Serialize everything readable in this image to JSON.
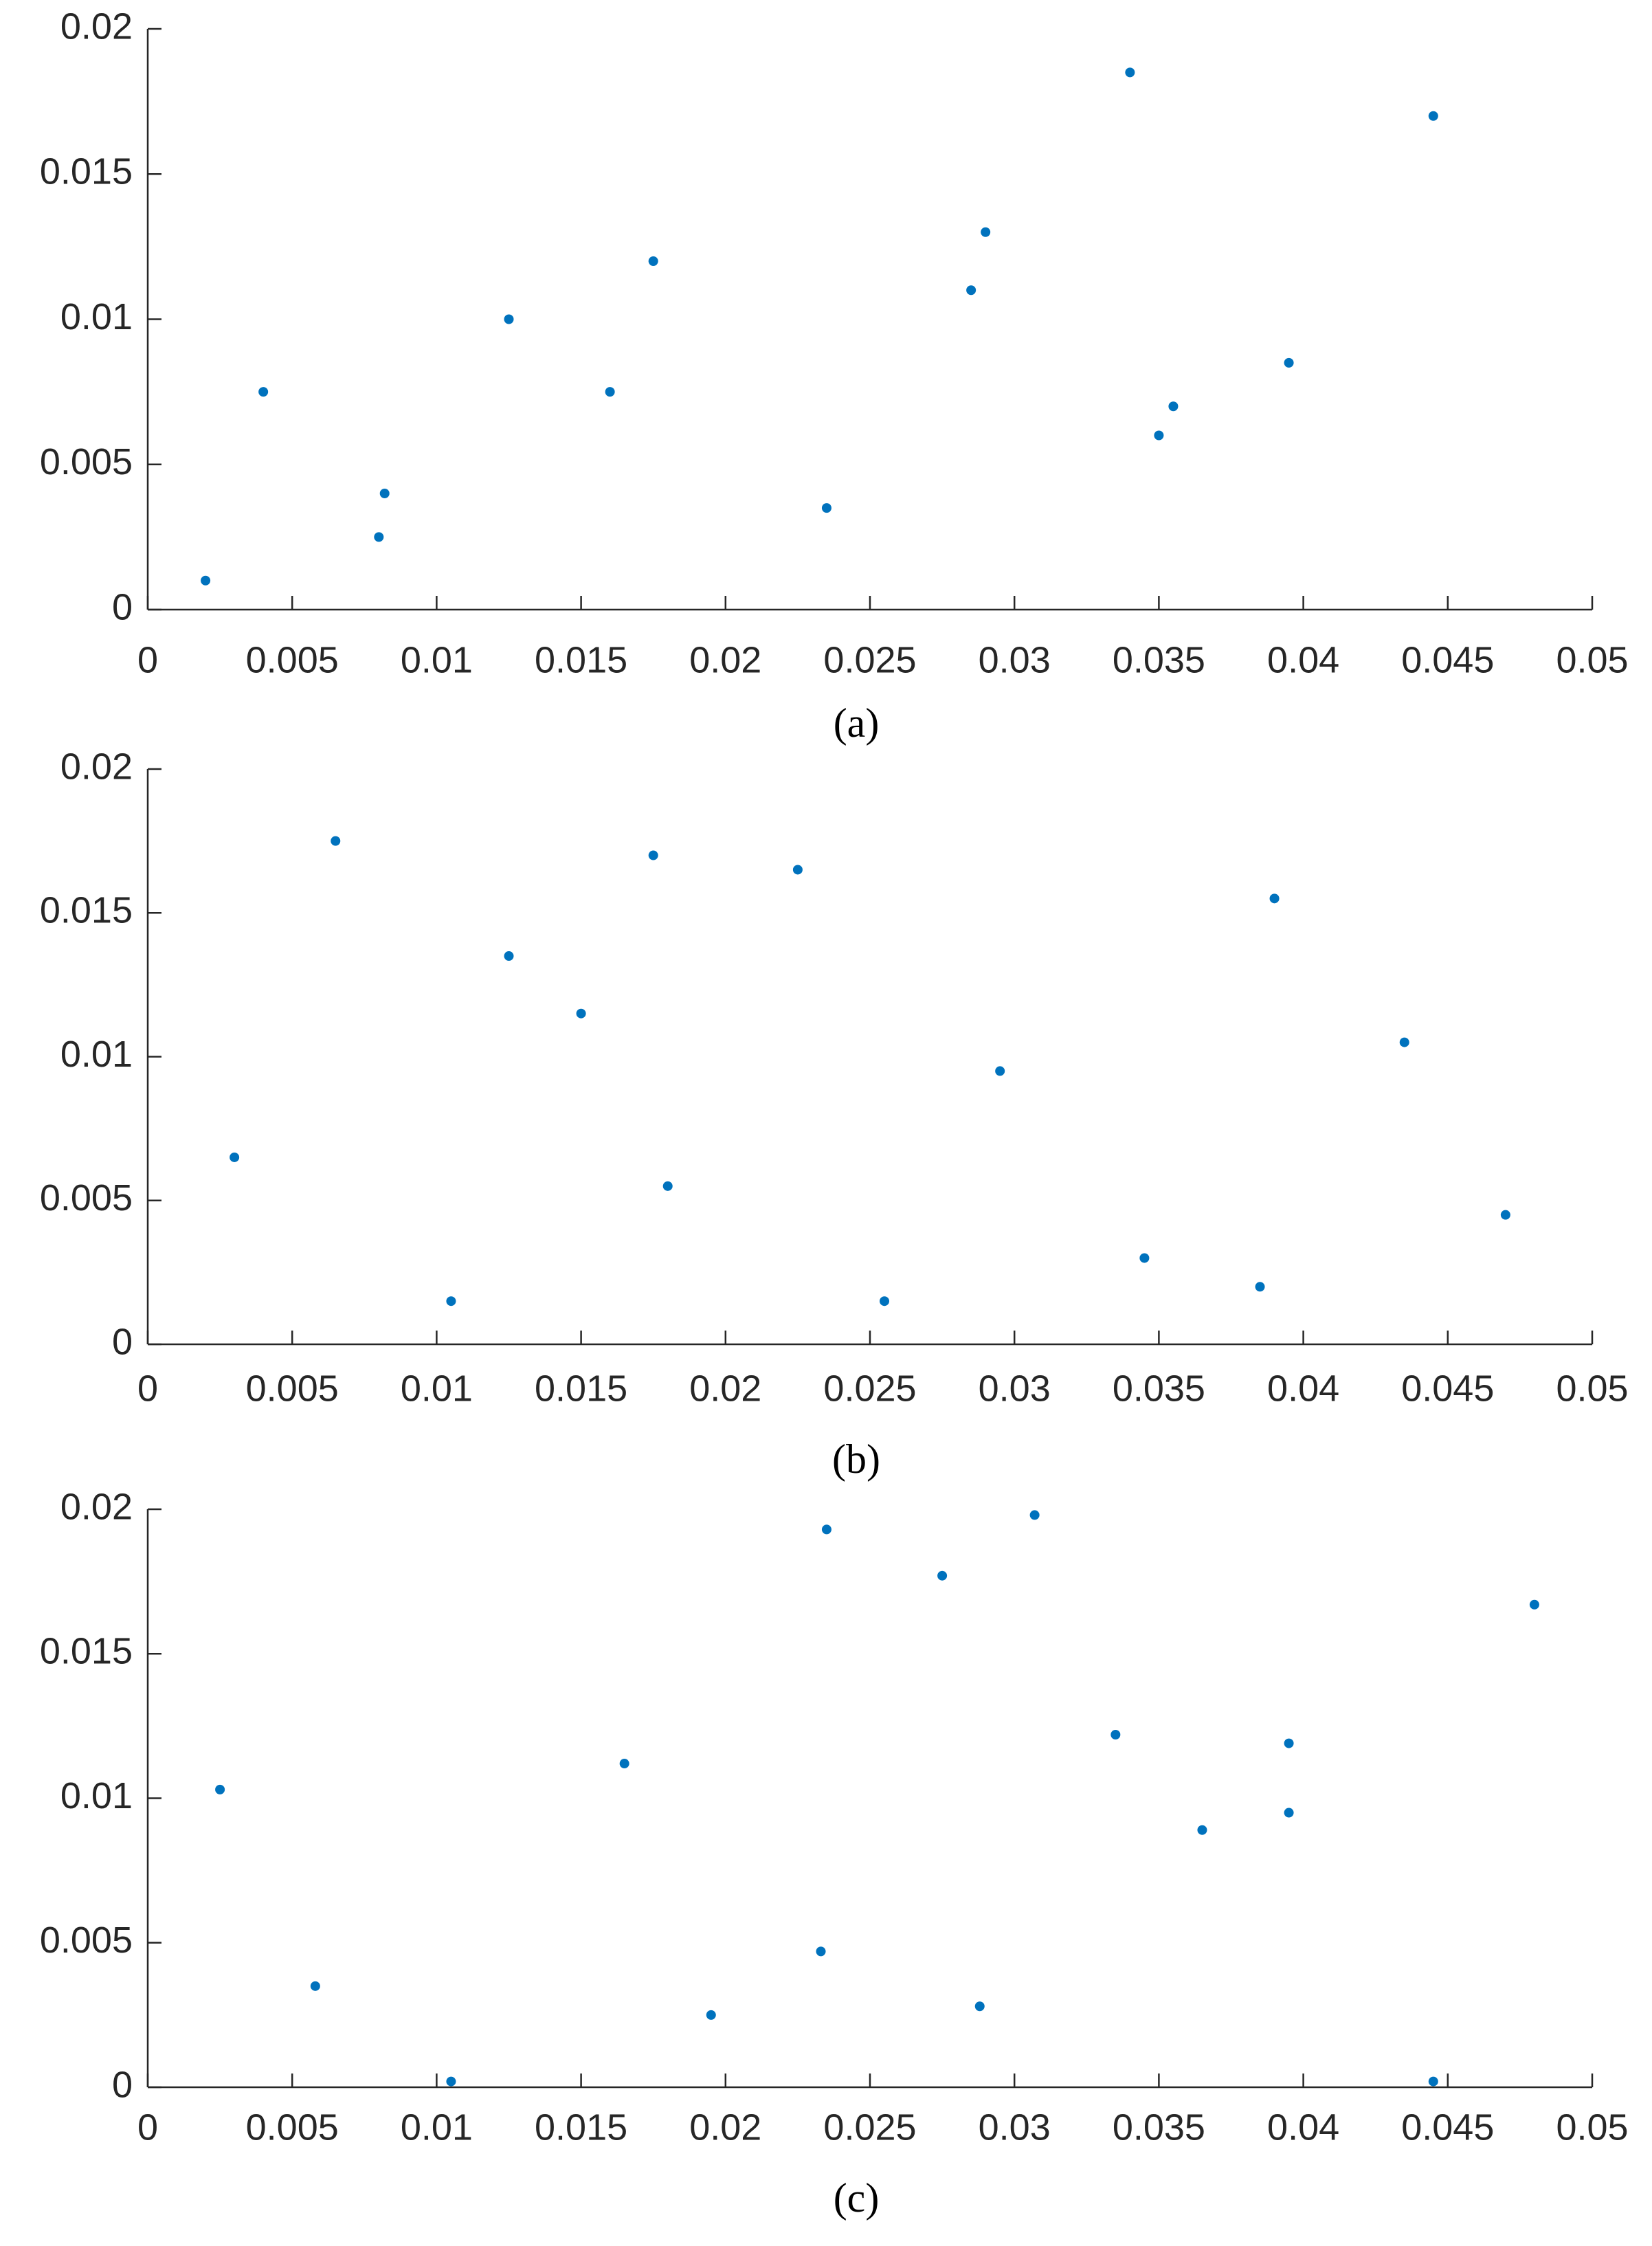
{
  "chart_data": [
    {
      "type": "scatter",
      "caption": "(a)",
      "color": "#0072bd",
      "x": [
        0.008,
        0.0082,
        0.035,
        0.0355,
        0.0445,
        0.029,
        0.016,
        0.004,
        0.0125,
        0.034,
        0.002,
        0.0175,
        0.0285,
        0.0395,
        0.0235
      ],
      "y": [
        0.0025,
        0.004,
        0.006,
        0.007,
        0.017,
        0.013,
        0.0075,
        0.0075,
        0.01,
        0.0185,
        0.001,
        0.012,
        0.011,
        0.0085,
        0.0035
      ],
      "xlim": [
        0,
        0.05
      ],
      "ylim": [
        0,
        0.02
      ],
      "xticks": [
        0,
        0.005,
        0.01,
        0.015,
        0.02,
        0.025,
        0.03,
        0.035,
        0.04,
        0.045,
        0.05
      ],
      "yticks": [
        0,
        0.005,
        0.01,
        0.015,
        0.02
      ]
    },
    {
      "type": "scatter",
      "caption": "(b)",
      "color": "#0072bd",
      "x": [
        0.0105,
        0.0255,
        0.015,
        0.018,
        0.039,
        0.047,
        0.0385,
        0.0295,
        0.0125,
        0.0225,
        0.003,
        0.0435,
        0.0065,
        0.0345,
        0.0175
      ],
      "y": [
        0.0015,
        0.0015,
        0.0115,
        0.0055,
        0.0155,
        0.0045,
        0.002,
        0.0095,
        0.0135,
        0.0165,
        0.0065,
        0.0105,
        0.0175,
        0.003,
        0.017
      ],
      "xlim": [
        0,
        0.05
      ],
      "ylim": [
        0,
        0.02
      ],
      "xticks": [
        0,
        0.005,
        0.01,
        0.015,
        0.02,
        0.025,
        0.03,
        0.035,
        0.04,
        0.045,
        0.05
      ],
      "yticks": [
        0,
        0.005,
        0.01,
        0.015,
        0.02
      ]
    },
    {
      "type": "scatter",
      "caption": "(c)",
      "color": "#0072bd",
      "x": [
        0.0233,
        0.0058,
        0.0195,
        0.0288,
        0.0235,
        0.048,
        0.0335,
        0.0365,
        0.0395,
        0.0025,
        0.0165,
        0.0307,
        0.0445,
        0.0105,
        0.0275,
        0.0395
      ],
      "y": [
        0.0047,
        0.0035,
        0.0025,
        0.0028,
        0.0193,
        0.0167,
        0.0122,
        0.0089,
        0.0095,
        0.0103,
        0.0112,
        0.0198,
        0.0002,
        0.0002,
        0.0177,
        0.0119
      ],
      "xlim": [
        0,
        0.05
      ],
      "ylim": [
        0,
        0.02
      ],
      "xticks": [
        0,
        0.005,
        0.01,
        0.015,
        0.02,
        0.025,
        0.03,
        0.035,
        0.04,
        0.045,
        0.05
      ],
      "yticks": [
        0,
        0.005,
        0.01,
        0.015,
        0.02
      ]
    }
  ]
}
